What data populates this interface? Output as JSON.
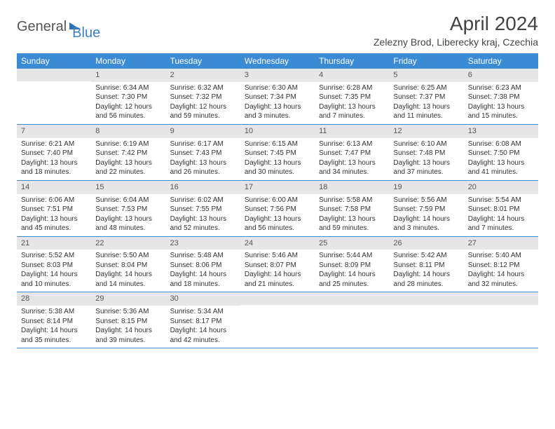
{
  "logo": {
    "part1": "General",
    "part2": "Blue"
  },
  "title": "April 2024",
  "location": "Zelezny Brod, Liberecky kraj, Czechia",
  "weekdays": [
    "Sunday",
    "Monday",
    "Tuesday",
    "Wednesday",
    "Thursday",
    "Friday",
    "Saturday"
  ],
  "style": {
    "header_bg": "#3b8bd4",
    "header_text": "#ffffff",
    "band_bg": "#e6e6e6",
    "rule_color": "#3b8bd4",
    "body_text": "#333333",
    "title_fontsize": 28,
    "weekday_fontsize": 12,
    "cell_fontsize": 10
  },
  "weeks": [
    [
      {
        "n": "",
        "sr": "",
        "ss": "",
        "dl1": "",
        "dl2": ""
      },
      {
        "n": "1",
        "sr": "Sunrise: 6:34 AM",
        "ss": "Sunset: 7:30 PM",
        "dl1": "Daylight: 12 hours",
        "dl2": "and 56 minutes."
      },
      {
        "n": "2",
        "sr": "Sunrise: 6:32 AM",
        "ss": "Sunset: 7:32 PM",
        "dl1": "Daylight: 12 hours",
        "dl2": "and 59 minutes."
      },
      {
        "n": "3",
        "sr": "Sunrise: 6:30 AM",
        "ss": "Sunset: 7:34 PM",
        "dl1": "Daylight: 13 hours",
        "dl2": "and 3 minutes."
      },
      {
        "n": "4",
        "sr": "Sunrise: 6:28 AM",
        "ss": "Sunset: 7:35 PM",
        "dl1": "Daylight: 13 hours",
        "dl2": "and 7 minutes."
      },
      {
        "n": "5",
        "sr": "Sunrise: 6:25 AM",
        "ss": "Sunset: 7:37 PM",
        "dl1": "Daylight: 13 hours",
        "dl2": "and 11 minutes."
      },
      {
        "n": "6",
        "sr": "Sunrise: 6:23 AM",
        "ss": "Sunset: 7:38 PM",
        "dl1": "Daylight: 13 hours",
        "dl2": "and 15 minutes."
      }
    ],
    [
      {
        "n": "7",
        "sr": "Sunrise: 6:21 AM",
        "ss": "Sunset: 7:40 PM",
        "dl1": "Daylight: 13 hours",
        "dl2": "and 18 minutes."
      },
      {
        "n": "8",
        "sr": "Sunrise: 6:19 AM",
        "ss": "Sunset: 7:42 PM",
        "dl1": "Daylight: 13 hours",
        "dl2": "and 22 minutes."
      },
      {
        "n": "9",
        "sr": "Sunrise: 6:17 AM",
        "ss": "Sunset: 7:43 PM",
        "dl1": "Daylight: 13 hours",
        "dl2": "and 26 minutes."
      },
      {
        "n": "10",
        "sr": "Sunrise: 6:15 AM",
        "ss": "Sunset: 7:45 PM",
        "dl1": "Daylight: 13 hours",
        "dl2": "and 30 minutes."
      },
      {
        "n": "11",
        "sr": "Sunrise: 6:13 AM",
        "ss": "Sunset: 7:47 PM",
        "dl1": "Daylight: 13 hours",
        "dl2": "and 34 minutes."
      },
      {
        "n": "12",
        "sr": "Sunrise: 6:10 AM",
        "ss": "Sunset: 7:48 PM",
        "dl1": "Daylight: 13 hours",
        "dl2": "and 37 minutes."
      },
      {
        "n": "13",
        "sr": "Sunrise: 6:08 AM",
        "ss": "Sunset: 7:50 PM",
        "dl1": "Daylight: 13 hours",
        "dl2": "and 41 minutes."
      }
    ],
    [
      {
        "n": "14",
        "sr": "Sunrise: 6:06 AM",
        "ss": "Sunset: 7:51 PM",
        "dl1": "Daylight: 13 hours",
        "dl2": "and 45 minutes."
      },
      {
        "n": "15",
        "sr": "Sunrise: 6:04 AM",
        "ss": "Sunset: 7:53 PM",
        "dl1": "Daylight: 13 hours",
        "dl2": "and 48 minutes."
      },
      {
        "n": "16",
        "sr": "Sunrise: 6:02 AM",
        "ss": "Sunset: 7:55 PM",
        "dl1": "Daylight: 13 hours",
        "dl2": "and 52 minutes."
      },
      {
        "n": "17",
        "sr": "Sunrise: 6:00 AM",
        "ss": "Sunset: 7:56 PM",
        "dl1": "Daylight: 13 hours",
        "dl2": "and 56 minutes."
      },
      {
        "n": "18",
        "sr": "Sunrise: 5:58 AM",
        "ss": "Sunset: 7:58 PM",
        "dl1": "Daylight: 13 hours",
        "dl2": "and 59 minutes."
      },
      {
        "n": "19",
        "sr": "Sunrise: 5:56 AM",
        "ss": "Sunset: 7:59 PM",
        "dl1": "Daylight: 14 hours",
        "dl2": "and 3 minutes."
      },
      {
        "n": "20",
        "sr": "Sunrise: 5:54 AM",
        "ss": "Sunset: 8:01 PM",
        "dl1": "Daylight: 14 hours",
        "dl2": "and 7 minutes."
      }
    ],
    [
      {
        "n": "21",
        "sr": "Sunrise: 5:52 AM",
        "ss": "Sunset: 8:03 PM",
        "dl1": "Daylight: 14 hours",
        "dl2": "and 10 minutes."
      },
      {
        "n": "22",
        "sr": "Sunrise: 5:50 AM",
        "ss": "Sunset: 8:04 PM",
        "dl1": "Daylight: 14 hours",
        "dl2": "and 14 minutes."
      },
      {
        "n": "23",
        "sr": "Sunrise: 5:48 AM",
        "ss": "Sunset: 8:06 PM",
        "dl1": "Daylight: 14 hours",
        "dl2": "and 18 minutes."
      },
      {
        "n": "24",
        "sr": "Sunrise: 5:46 AM",
        "ss": "Sunset: 8:07 PM",
        "dl1": "Daylight: 14 hours",
        "dl2": "and 21 minutes."
      },
      {
        "n": "25",
        "sr": "Sunrise: 5:44 AM",
        "ss": "Sunset: 8:09 PM",
        "dl1": "Daylight: 14 hours",
        "dl2": "and 25 minutes."
      },
      {
        "n": "26",
        "sr": "Sunrise: 5:42 AM",
        "ss": "Sunset: 8:11 PM",
        "dl1": "Daylight: 14 hours",
        "dl2": "and 28 minutes."
      },
      {
        "n": "27",
        "sr": "Sunrise: 5:40 AM",
        "ss": "Sunset: 8:12 PM",
        "dl1": "Daylight: 14 hours",
        "dl2": "and 32 minutes."
      }
    ],
    [
      {
        "n": "28",
        "sr": "Sunrise: 5:38 AM",
        "ss": "Sunset: 8:14 PM",
        "dl1": "Daylight: 14 hours",
        "dl2": "and 35 minutes."
      },
      {
        "n": "29",
        "sr": "Sunrise: 5:36 AM",
        "ss": "Sunset: 8:15 PM",
        "dl1": "Daylight: 14 hours",
        "dl2": "and 39 minutes."
      },
      {
        "n": "30",
        "sr": "Sunrise: 5:34 AM",
        "ss": "Sunset: 8:17 PM",
        "dl1": "Daylight: 14 hours",
        "dl2": "and 42 minutes."
      },
      {
        "n": "",
        "sr": "",
        "ss": "",
        "dl1": "",
        "dl2": ""
      },
      {
        "n": "",
        "sr": "",
        "ss": "",
        "dl1": "",
        "dl2": ""
      },
      {
        "n": "",
        "sr": "",
        "ss": "",
        "dl1": "",
        "dl2": ""
      },
      {
        "n": "",
        "sr": "",
        "ss": "",
        "dl1": "",
        "dl2": ""
      }
    ]
  ]
}
